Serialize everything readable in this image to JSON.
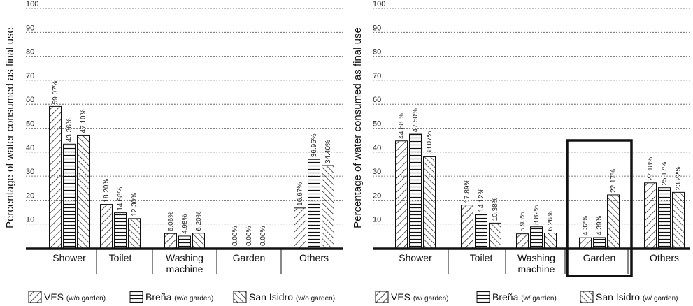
{
  "chart_data": [
    {
      "type": "bar",
      "ylabel": "Percentage of water consumed as final use",
      "ylim": [
        0,
        100
      ],
      "yticks": [
        "10",
        "20",
        "30",
        "40",
        "50",
        "60",
        "70",
        "80",
        "90",
        "100"
      ],
      "grid": true,
      "categories": [
        "Shower",
        "Toilet",
        "Washing\nmachine",
        "Garden",
        "Others"
      ],
      "series": [
        {
          "name": "VES",
          "qualifier": "(w/o garden)",
          "pattern": "diag-fwd",
          "values": [
            59.07,
            18.2,
            6.06,
            0.0,
            16.67
          ],
          "labels": [
            "59.07%",
            "18.20%",
            "6.06%",
            "0.00%",
            "16.67%"
          ]
        },
        {
          "name": "Breña",
          "qualifier": "(w/o garden)",
          "pattern": "horizontal",
          "values": [
            43.36,
            14.68,
            4.98,
            0.0,
            36.95
          ],
          "labels": [
            "43.36%",
            "14.68%",
            "4.98%",
            "0.00%",
            "36.95%"
          ]
        },
        {
          "name": "San Isidro",
          "qualifier": "(w/o garden)",
          "pattern": "diag-back",
          "values": [
            47.1,
            12.3,
            6.2,
            0.0,
            34.4
          ],
          "labels": [
            "47.10%",
            "12.30%",
            "6.20%",
            "0.00%",
            "34.40%"
          ]
        }
      ],
      "highlight_category": null,
      "legend_position": "bottom"
    },
    {
      "type": "bar",
      "ylabel": "Percentage of water consumed as final use",
      "ylim": [
        0,
        100
      ],
      "yticks": [
        "10",
        "20",
        "30",
        "40",
        "50",
        "60",
        "70",
        "80",
        "90",
        "100"
      ],
      "grid": true,
      "categories": [
        "Shower",
        "Toilet",
        "Washing\nmachine",
        "Garden",
        "Others"
      ],
      "series": [
        {
          "name": "VES",
          "qualifier": "(w/ garden)",
          "pattern": "diag-fwd",
          "values": [
            44.68,
            17.89,
            5.93,
            4.32,
            27.18
          ],
          "labels": [
            "44.68 %",
            "17.89%",
            "5.93%",
            "4.32%",
            "27.18%"
          ]
        },
        {
          "name": "Breña",
          "qualifier": "(w/ garden)",
          "pattern": "horizontal",
          "values": [
            47.5,
            14.12,
            8.82,
            4.39,
            25.17
          ],
          "labels": [
            "47.50%",
            "14.12%",
            "8.82%",
            "4.39%",
            "25.17%"
          ]
        },
        {
          "name": "San Isidro",
          "qualifier": "(w/ garden)",
          "pattern": "diag-back",
          "values": [
            38.07,
            10.38,
            6.26,
            22.17,
            23.22
          ],
          "labels": [
            "38.07%",
            "10.38%",
            "6.26%",
            "22.17%",
            "23.22%"
          ]
        }
      ],
      "highlight_category": "Garden",
      "legend_position": "bottom"
    }
  ],
  "colors": {
    "ink": "#111111",
    "grid": "#555555",
    "background": "#ffffff"
  }
}
